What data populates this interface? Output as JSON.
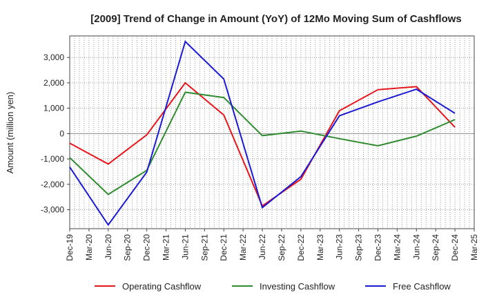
{
  "chart_data": {
    "type": "line",
    "title": "[2009]  Trend of Change in Amount (YoY) of 12Mo Moving Sum of Cashflows",
    "xlabel": "",
    "ylabel": "Amount (million yen)",
    "ylim": [
      -3750,
      3850
    ],
    "yticks": [
      -3000,
      -2000,
      -1000,
      0,
      1000,
      2000,
      3000
    ],
    "ytick_labels": [
      "-3,000",
      "-2,000",
      "-1,000",
      "0",
      "1,000",
      "2,000",
      "3,000"
    ],
    "categories": [
      "Dec-19",
      "Mar-20",
      "Jun-20",
      "Sep-20",
      "Dec-20",
      "Mar-21",
      "Jun-21",
      "Sep-21",
      "Dec-21",
      "Mar-22",
      "Jun-22",
      "Sep-22",
      "Dec-22",
      "Mar-23",
      "Jun-23",
      "Sep-23",
      "Dec-23",
      "Mar-24",
      "Jun-24",
      "Sep-24",
      "Dec-24",
      "Mar-25"
    ],
    "grid": true,
    "legend_position": "bottom",
    "series": [
      {
        "name": "Operating Cashflow",
        "color": "#e8141a",
        "points": [
          [
            0,
            -380
          ],
          [
            2,
            -1200
          ],
          [
            4,
            -50
          ],
          [
            6,
            2000
          ],
          [
            8,
            730
          ],
          [
            10,
            -2850
          ],
          [
            12,
            -1800
          ],
          [
            14,
            900
          ],
          [
            16,
            1730
          ],
          [
            18,
            1850
          ],
          [
            20,
            250
          ]
        ]
      },
      {
        "name": "Investing Cashflow",
        "color": "#2e8b2e",
        "points": [
          [
            0,
            -950
          ],
          [
            2,
            -2400
          ],
          [
            4,
            -1450
          ],
          [
            6,
            1630
          ],
          [
            8,
            1420
          ],
          [
            10,
            -80
          ],
          [
            12,
            100
          ],
          [
            14,
            -200
          ],
          [
            16,
            -480
          ],
          [
            18,
            -100
          ],
          [
            20,
            550
          ]
        ]
      },
      {
        "name": "Free Cashflow",
        "color": "#1a1ad6",
        "points": [
          [
            0,
            -1320
          ],
          [
            2,
            -3600
          ],
          [
            4,
            -1520
          ],
          [
            6,
            3630
          ],
          [
            8,
            2150
          ],
          [
            10,
            -2920
          ],
          [
            12,
            -1700
          ],
          [
            14,
            700
          ],
          [
            16,
            1250
          ],
          [
            18,
            1750
          ],
          [
            20,
            800
          ]
        ]
      }
    ]
  }
}
